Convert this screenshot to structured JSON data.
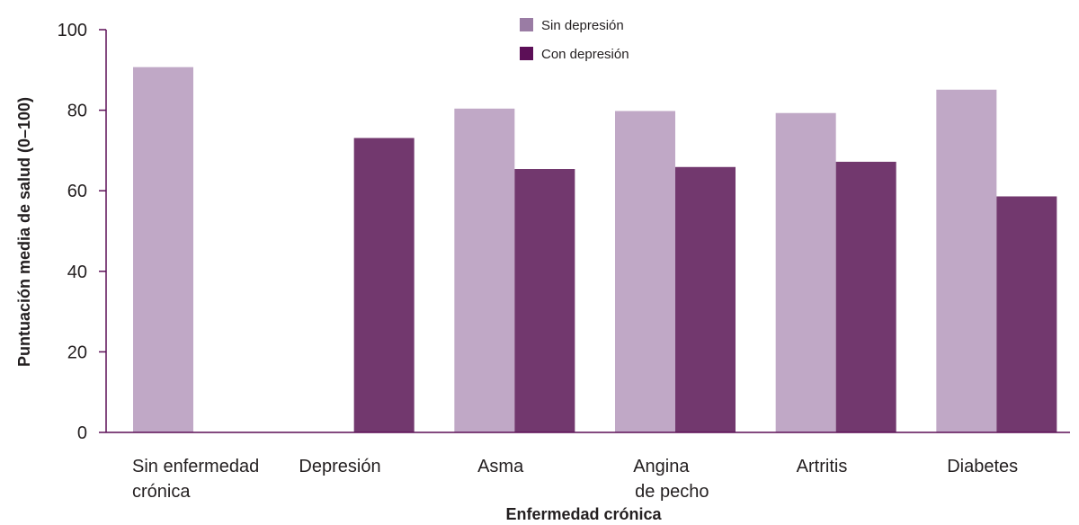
{
  "chart_data": {
    "type": "bar",
    "categories": [
      [
        "Sin enfermedad",
        "crónica"
      ],
      [
        "Depresión"
      ],
      [
        "Asma"
      ],
      [
        "Angina",
        "de pecho"
      ],
      [
        "Artritis"
      ],
      [
        "Diabetes"
      ]
    ],
    "series": [
      {
        "name": "Sin depresión",
        "color": "#c0a8c6",
        "values": [
          90.7,
          null,
          80.4,
          79.8,
          79.3,
          85.1
        ]
      },
      {
        "name": "Con depresión",
        "color": "#72386e",
        "values": [
          null,
          73.1,
          65.4,
          65.9,
          67.2,
          58.6
        ]
      }
    ],
    "legend_colors": [
      "#9a7ca4",
      "#5c0f57"
    ],
    "xlabel": "Enfermedad crónica",
    "ylabel": "Puntuación media de salud (0–100)",
    "ylim": [
      0,
      100
    ],
    "yticks": [
      "0",
      "20",
      "40",
      "60",
      "80",
      "100"
    ],
    "grid": false,
    "legend_position": "top-center"
  }
}
